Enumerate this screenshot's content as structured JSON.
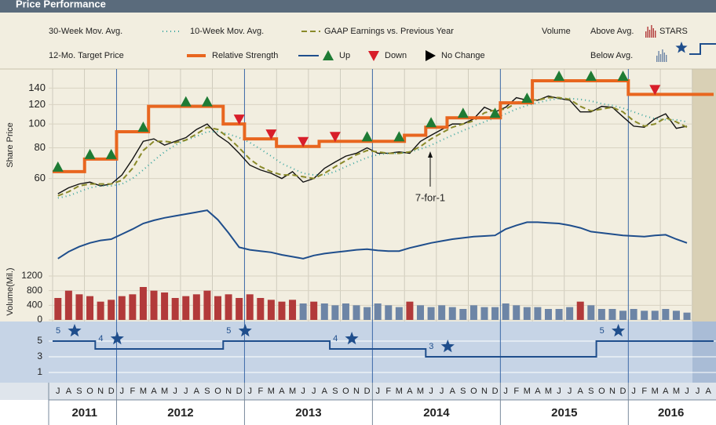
{
  "chart_data": {
    "type": "stock",
    "title": "Price Performance",
    "categories": [
      "J",
      "A",
      "S",
      "O",
      "N",
      "D",
      "J",
      "F",
      "M",
      "A",
      "M",
      "J",
      "J",
      "A",
      "S",
      "O",
      "N",
      "D",
      "J",
      "F",
      "M",
      "A",
      "M",
      "J",
      "J",
      "A",
      "S",
      "O",
      "N",
      "D",
      "J",
      "F",
      "M",
      "A",
      "M",
      "J",
      "J",
      "A",
      "S",
      "O",
      "N",
      "D",
      "J",
      "F",
      "M",
      "A",
      "M",
      "J",
      "J",
      "A",
      "S",
      "O",
      "N",
      "D",
      "J",
      "F",
      "M",
      "A",
      "M",
      "J",
      "J",
      "A"
    ],
    "years": [
      "2011",
      "2012",
      "2013",
      "2014",
      "2015",
      "2016"
    ],
    "price": {
      "axis_label": "Share Price",
      "scale": "log",
      "ylim": [
        48,
        165
      ],
      "yticks": [
        60,
        80,
        100,
        120,
        140
      ],
      "series": [
        {
          "color": "#111111",
          "values": [
            52,
            55,
            57,
            58,
            56,
            57,
            62,
            72,
            85,
            87,
            82,
            85,
            88,
            95,
            100,
            90,
            84,
            76,
            68,
            65,
            63,
            60,
            64,
            58,
            60,
            66,
            70,
            74,
            76,
            80,
            76,
            76,
            77,
            76,
            85,
            90,
            95,
            100,
            100,
            105,
            117,
            112,
            117,
            128,
            125,
            125,
            130,
            127,
            125,
            112,
            112,
            118,
            117,
            107,
            98,
            97,
            105,
            110,
            96,
            98,
            null,
            null
          ]
        },
        {
          "name": "30-Week Mov. Avg.",
          "color": "#3aa6a0",
          "dash": "1,4",
          "values": [
            50,
            51,
            53,
            55,
            56,
            56,
            57,
            60,
            65,
            71,
            77,
            82,
            86,
            89,
            93,
            93,
            91,
            88,
            84,
            79,
            74,
            69,
            66,
            63,
            62,
            62,
            64,
            67,
            70,
            73,
            75,
            76,
            76,
            77,
            79,
            82,
            86,
            90,
            94,
            98,
            102,
            106,
            110,
            115,
            119,
            122,
            125,
            127,
            127,
            126,
            124,
            121,
            119,
            116,
            112,
            108,
            105,
            104,
            104,
            102,
            null,
            null
          ]
        },
        {
          "name": "10-Week Mov. Avg.",
          "color": "#8a8a2a",
          "dash": "7,4",
          "values": [
            51,
            53,
            56,
            57,
            57,
            57,
            59,
            66,
            78,
            85,
            85,
            84,
            86,
            91,
            97,
            95,
            88,
            80,
            72,
            67,
            64,
            62,
            62,
            61,
            60,
            63,
            67,
            71,
            75,
            78,
            77,
            76,
            76,
            77,
            81,
            87,
            92,
            97,
            100,
            103,
            111,
            114,
            115,
            122,
            126,
            125,
            128,
            128,
            126,
            118,
            113,
            115,
            117,
            112,
            103,
            98,
            100,
            106,
            102,
            97,
            null,
            null
          ]
        },
        {
          "name": "12-Mo. Target Price",
          "color": "#e8661f",
          "step": true,
          "values": [
            64,
            64,
            64,
            72,
            72,
            72,
            93,
            93,
            93,
            118,
            118,
            118,
            118,
            118,
            118,
            118,
            100,
            100,
            87,
            87,
            87,
            81,
            81,
            81,
            81,
            85,
            85,
            85,
            85,
            85,
            85,
            85,
            85,
            90,
            90,
            97,
            97,
            106,
            106,
            106,
            106,
            106,
            122,
            122,
            122,
            150,
            150,
            150,
            150,
            150,
            150,
            150,
            150,
            150,
            132,
            132,
            132,
            132,
            132,
            132,
            132,
            132
          ]
        }
      ]
    },
    "earnings": {
      "name": "GAAP Earnings vs. Previous Year",
      "legend": [
        {
          "label": "Up",
          "color": "#1e7b34"
        },
        {
          "label": "Down",
          "color": "#d81e2a"
        },
        {
          "label": "No Change",
          "color": "#000000"
        }
      ],
      "values": [
        "Up",
        null,
        null,
        "Up",
        null,
        "Up",
        null,
        null,
        "Up",
        null,
        null,
        null,
        "Up",
        null,
        "Up",
        null,
        null,
        "Down",
        null,
        null,
        "Down",
        null,
        null,
        "Down",
        null,
        null,
        "Down",
        null,
        null,
        "Up",
        null,
        null,
        "Up",
        null,
        null,
        "Up",
        null,
        null,
        "Up",
        null,
        null,
        "Up",
        null,
        null,
        "Up",
        null,
        null,
        "Up",
        null,
        null,
        "Up",
        null,
        null,
        "Up",
        null,
        null,
        "Down",
        null,
        null,
        null,
        null,
        null
      ]
    },
    "relative_strength": {
      "name": "Relative Strength",
      "color": "#1f4e8c",
      "ylim": [
        0,
        100
      ],
      "values": [
        19,
        30,
        38,
        44,
        48,
        50,
        58,
        66,
        75,
        80,
        84,
        87,
        90,
        93,
        96,
        81,
        60,
        37,
        33,
        31,
        29,
        25,
        22,
        19,
        24,
        27,
        29,
        31,
        33,
        34,
        32,
        31,
        31,
        36,
        40,
        44,
        47,
        50,
        52,
        54,
        55,
        56,
        66,
        72,
        77,
        77,
        76,
        75,
        72,
        68,
        62,
        60,
        58,
        56,
        55,
        54,
        56,
        57,
        50,
        44,
        null,
        null
      ]
    },
    "volume": {
      "axis_label": "Volume(Mil.)",
      "name": "Volume",
      "above_label": "Above Avg.",
      "below_label": "Below Avg.",
      "above_color": "#b23a3a",
      "below_color": "#6d85a6",
      "ylim": [
        0,
        1350
      ],
      "yticks": [
        0,
        400,
        800,
        1200
      ],
      "values": [
        600,
        800,
        700,
        650,
        500,
        550,
        650,
        700,
        900,
        800,
        750,
        600,
        650,
        700,
        800,
        650,
        700,
        600,
        700,
        600,
        550,
        500,
        550,
        450,
        500,
        450,
        400,
        450,
        400,
        350,
        450,
        400,
        350,
        500,
        400,
        350,
        400,
        350,
        300,
        400,
        350,
        350,
        450,
        400,
        350,
        350,
        300,
        300,
        350,
        500,
        400,
        300,
        300,
        250,
        300,
        250,
        250,
        300,
        250,
        200,
        null,
        null
      ]
    },
    "stars": {
      "name": "STARS",
      "color": "#1f4e8c",
      "ylim": [
        -0.5,
        7.5
      ],
      "yticks": [
        1,
        3,
        5
      ],
      "values": [
        5,
        5,
        5,
        5,
        4,
        4,
        4,
        4,
        4,
        4,
        4,
        4,
        4,
        4,
        4,
        4,
        5,
        5,
        5,
        5,
        5,
        5,
        5,
        5,
        5,
        5,
        4,
        4,
        4,
        4,
        4,
        4,
        4,
        4,
        4,
        3,
        3,
        3,
        3,
        3,
        3,
        3,
        3,
        3,
        3,
        3,
        3,
        3,
        3,
        3,
        3,
        5,
        5,
        5,
        5,
        5,
        5,
        5,
        5,
        5,
        5,
        5
      ]
    },
    "annotation": "7-for-1"
  }
}
